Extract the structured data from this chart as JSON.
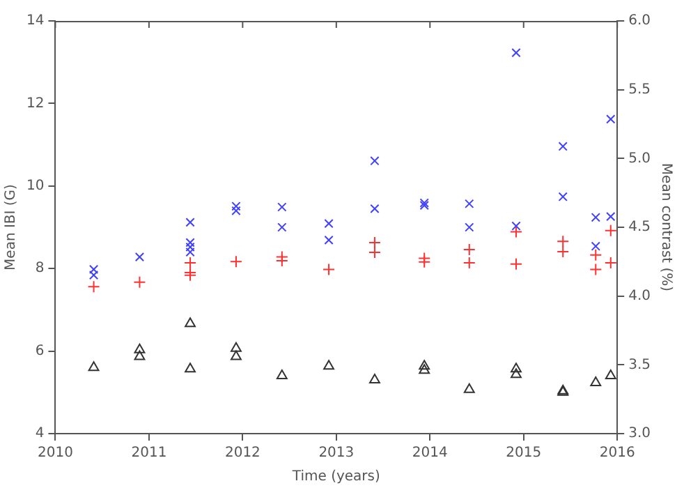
{
  "chart_data": {
    "type": "scatter",
    "xlabel": "Time (years)",
    "ylabel": "Mean IBI (G)",
    "y2label": "Mean contrast (%)",
    "xlim": [
      2010,
      2016
    ],
    "xticks": [
      2010,
      2011,
      2012,
      2013,
      2014,
      2015,
      2016
    ],
    "ylim": [
      4,
      14
    ],
    "yticks": [
      4,
      6,
      8,
      10,
      12,
      14
    ],
    "y2lim": [
      3.0,
      6.0
    ],
    "y2ticks": [
      {
        "value": 3,
        "label": "3.0"
      },
      3.5,
      {
        "value": 4,
        "label": "4.0"
      },
      4.5,
      {
        "value": 5,
        "label": "5.0"
      },
      5.5,
      {
        "value": 6,
        "label": "6.0"
      }
    ],
    "grid": false,
    "legend": false,
    "series": [
      {
        "color": "#4040ff",
        "marker": "x",
        "x": [
          2010.41,
          2010.41,
          2010.9,
          2011.44,
          2011.44,
          2011.44,
          2011.44,
          2011.93,
          2011.93,
          2012.42,
          2012.42,
          2012.92,
          2012.92,
          2013.41,
          2013.41,
          2013.94,
          2013.94,
          2014.42,
          2014.42,
          2014.92,
          2014.92,
          2015.42,
          2015.42,
          2015.77,
          2015.77,
          2015.93,
          2015.93
        ],
        "values": [
          7.98,
          7.84,
          8.28,
          9.12,
          8.63,
          8.52,
          8.4,
          9.51,
          9.4,
          9.49,
          9.0,
          9.09,
          8.69,
          10.61,
          9.45,
          9.53,
          9.59,
          9.57,
          9.0,
          13.23,
          9.03,
          10.96,
          9.74,
          9.24,
          8.54,
          11.62,
          9.26
        ]
      },
      {
        "color": "#ff3030",
        "marker": "plus",
        "x": [
          2010.41,
          2010.9,
          2011.44,
          2011.44,
          2011.44,
          2011.93,
          2012.42,
          2012.42,
          2012.92,
          2013.41,
          2013.41,
          2013.94,
          2013.94,
          2014.42,
          2014.42,
          2014.92,
          2014.92,
          2015.42,
          2015.42,
          2015.77,
          2015.77,
          2015.93,
          2015.93
        ],
        "values": [
          7.56,
          7.67,
          8.14,
          7.9,
          7.84,
          8.17,
          8.28,
          8.19,
          7.98,
          8.63,
          8.39,
          8.16,
          8.25,
          8.46,
          8.14,
          8.89,
          8.11,
          8.66,
          8.41,
          8.33,
          7.98,
          8.92,
          8.14
        ]
      },
      {
        "color": "#333333",
        "marker": "triangle",
        "axis": "y2",
        "x": [
          2010.41,
          2010.9,
          2010.9,
          2011.44,
          2011.44,
          2011.93,
          2011.93,
          2012.42,
          2012.92,
          2013.41,
          2013.94,
          2013.94,
          2014.42,
          2014.92,
          2014.92,
          2015.42,
          2015.42,
          2015.77,
          2015.93
        ],
        "values": [
          3.48,
          3.61,
          3.56,
          3.8,
          3.47,
          3.62,
          3.56,
          3.42,
          3.49,
          3.39,
          3.46,
          3.49,
          3.32,
          3.47,
          3.43,
          3.3,
          3.31,
          3.37,
          3.42
        ]
      }
    ]
  }
}
